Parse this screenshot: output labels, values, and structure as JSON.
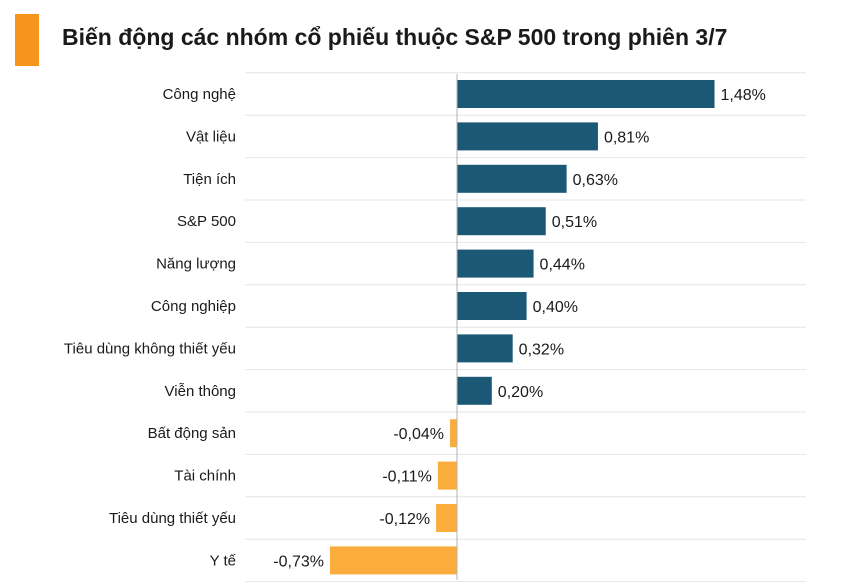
{
  "header": {
    "title": "Biến động các nhóm cổ phiếu thuộc S&P 500 trong phiên 3/7"
  },
  "colors": {
    "accent": "#f7941d",
    "positive": "#1b5876",
    "negative": "#fbad3c",
    "grid": "#e6e6e6",
    "axis": "#b3b3b3"
  },
  "chart_data": {
    "type": "bar",
    "orientation": "horizontal",
    "title": "Biến động các nhóm cổ phiếu thuộc S&P 500 trong phiên 3/7",
    "categories": [
      "Công nghệ",
      "Vật liệu",
      "Tiện ích",
      "S&P 500",
      "Năng lượng",
      "Công nghiệp",
      "Tiêu dùng không thiết yếu",
      "Viễn thông",
      "Bất động sản",
      "Tài chính",
      "Tiêu dùng thiết yếu",
      "Y tế"
    ],
    "values": [
      1.48,
      0.81,
      0.63,
      0.51,
      0.44,
      0.4,
      0.32,
      0.2,
      -0.04,
      -0.11,
      -0.12,
      -0.73
    ],
    "value_labels": [
      "1,48%",
      "0,81%",
      "0,63%",
      "0,51%",
      "0,44%",
      "0,40%",
      "0,32%",
      "0,20%",
      "-0,04%",
      "-0,11%",
      "-0,12%",
      "-0,73%"
    ],
    "unit": "%",
    "grid": true
  }
}
